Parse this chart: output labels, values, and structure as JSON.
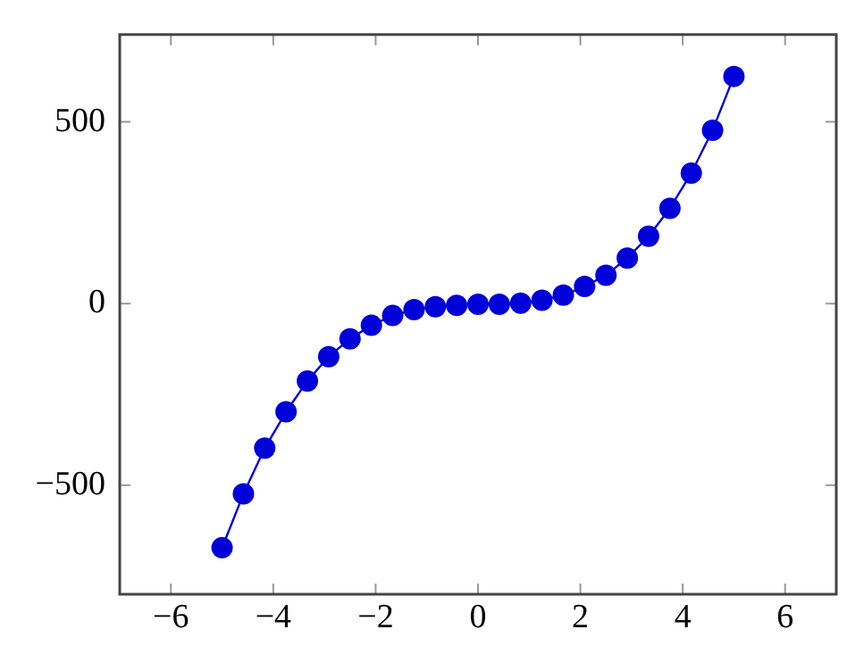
{
  "chart_data": {
    "type": "line",
    "x": [
      -5,
      -4.583,
      -4.167,
      -3.75,
      -3.333,
      -2.917,
      -2.5,
      -2.083,
      -1.667,
      -1.25,
      -0.833,
      -0.417,
      0,
      0.417,
      0.833,
      1.25,
      1.667,
      2.083,
      2.5,
      2.917,
      3.333,
      3.75,
      4.167,
      4.583,
      5
    ],
    "series": [
      {
        "color": "#0000d8",
        "values": [
          -672,
          -524,
          -398,
          -298,
          -213,
          -146,
          -97,
          -60,
          -33,
          -17,
          -9,
          -5,
          -2,
          -2,
          1,
          9,
          23,
          47,
          78,
          125,
          185,
          262,
          359,
          477,
          625
        ]
      }
    ],
    "xlim": [
      -7,
      7
    ],
    "xticks": [
      -6,
      -4,
      -2,
      0,
      2,
      4,
      6
    ],
    "ylim": [
      -800,
      740
    ],
    "yticks": [
      -500,
      0,
      500
    ],
    "grid": false,
    "legend": false,
    "marker": "circle",
    "line_style": "solid"
  }
}
